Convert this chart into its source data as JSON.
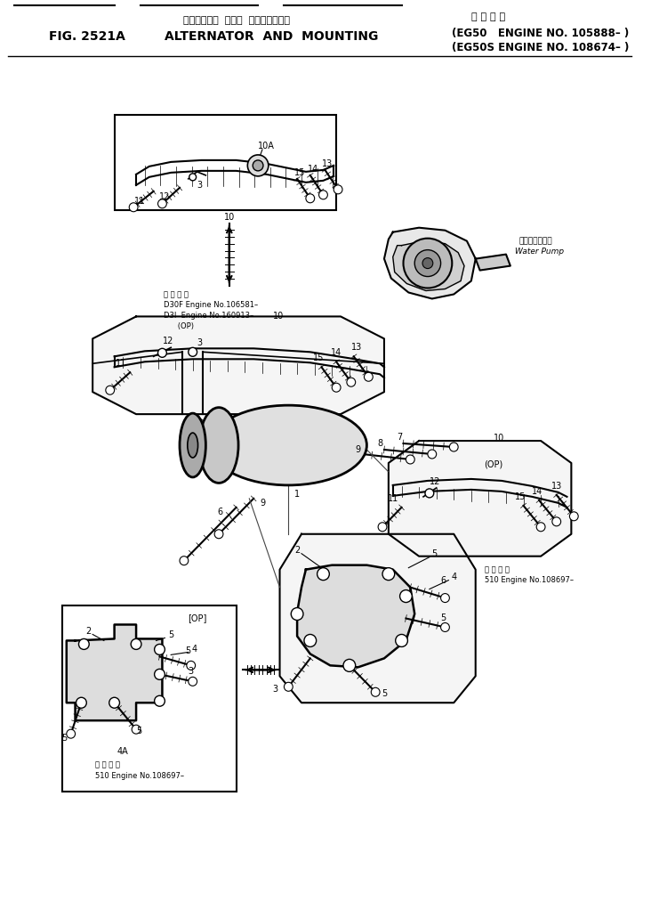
{
  "bg_color": "#ffffff",
  "line_color": "#000000",
  "fig_width": 7.32,
  "fig_height": 10.22,
  "dpi": 100,
  "title_japanese": "オルタネータ  および  マウンティング",
  "title_applicability": "適 用 号 機",
  "title_main_left": "FIG. 2521A",
  "title_main_center": "ALTERNATOR  AND  MOUNTING",
  "title_right1": "(EG50   ENGINE NO. 105888– )",
  "title_right2": "(EG50S ENGINE NO. 108674– )",
  "label_d30f": "適 用 号 機",
  "label_d30f1": "D30F Engine No.106581–",
  "label_d30f2": "D3I  Engine No.160913–",
  "label_d30f3": "      (OP)",
  "label_510_1": "適 用 号 機",
  "label_510_2": "510 Engine No.108697–",
  "label_510b_1": "適 用 号 機",
  "label_510b_2": "510 Engine No.108697–",
  "label_water_pump_jp": "ウォータポンプ",
  "label_water_pump_en": "Water Pump"
}
